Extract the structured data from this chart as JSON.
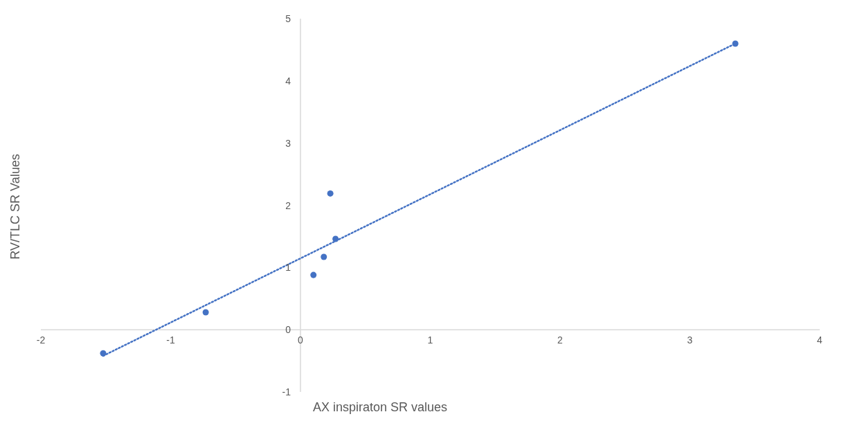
{
  "chart_data": {
    "type": "scatter",
    "xlabel": "AX inspiraton SR values",
    "ylabel": "RV/TLC SR Values",
    "series": [
      {
        "color": "#4472c4",
        "x": [
          -1.52,
          -0.73,
          0.1,
          0.18,
          0.23,
          0.27,
          3.35
        ],
        "values": [
          -0.38,
          0.28,
          0.88,
          1.17,
          2.19,
          1.46,
          4.6
        ],
        "marker": "circle"
      },
      {
        "type": "line",
        "color": "#4472c4",
        "x": [
          -1.52,
          3.35
        ],
        "values": [
          -0.42,
          4.6
        ],
        "line_style": "dotted",
        "marker": "none"
      }
    ],
    "xlim": [
      -2,
      4
    ],
    "xticks": [
      -2,
      -1,
      0,
      1,
      2,
      3,
      4
    ],
    "ylim": [
      -1,
      5
    ],
    "yticks": [
      -1,
      0,
      1,
      2,
      3,
      4,
      5
    ]
  }
}
